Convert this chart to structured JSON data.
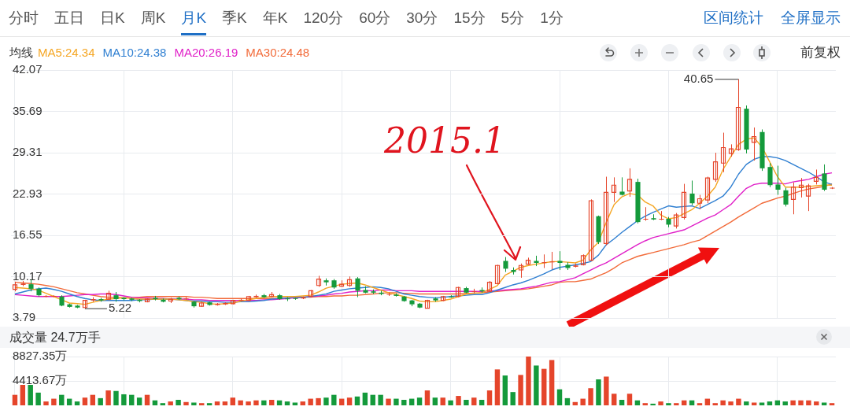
{
  "chart_data": [
    {
      "type": "other",
      "annotations": [
        "分时",
        "五日",
        "日K",
        "周K",
        "月K",
        "季K",
        "年K",
        "120分",
        "60分",
        "30分",
        "15分",
        "5分",
        "1分",
        "区间统计",
        "全屏显示",
        "前复权"
      ]
    },
    {
      "type": "candlestick",
      "legend_title": "均线",
      "legend": "top left",
      "grid": true,
      "tick_labels": "y",
      "categories": [
        null,
        null,
        null,
        null,
        null,
        null,
        null,
        null,
        null,
        null,
        null,
        null,
        null,
        null,
        null,
        null,
        null,
        null,
        null,
        null,
        null,
        null,
        null,
        null,
        null,
        null,
        null,
        null,
        null,
        null,
        null,
        null,
        null,
        null,
        null,
        null,
        null,
        null,
        null,
        null,
        null,
        null,
        null,
        null,
        null,
        null,
        null,
        null,
        null,
        null,
        null,
        null,
        null,
        null,
        null,
        null,
        null,
        null,
        null,
        null,
        null,
        null,
        null,
        null,
        null,
        null,
        null,
        null,
        null,
        null,
        null,
        null,
        null,
        null,
        null,
        null,
        null,
        null,
        null,
        null,
        null,
        null,
        null,
        null,
        null,
        null,
        null,
        null,
        null,
        null,
        null,
        null,
        null,
        null,
        null,
        null,
        null,
        null,
        null,
        null,
        null,
        null,
        null,
        null,
        null,
        null
      ],
      "ylim": [
        3.79,
        42.07
      ],
      "yticks": [
        3.79,
        10.17,
        16.55,
        22.93,
        29.31,
        35.69,
        42.07
      ],
      "ohlc": [
        [
          8.2,
          9.4,
          7.9,
          8.9
        ],
        [
          8.9,
          9.5,
          8.7,
          9.1
        ],
        [
          9.0,
          9.7,
          7.9,
          8.3
        ],
        [
          8.3,
          8.5,
          7.1,
          7.3
        ],
        [
          7.1,
          7.3,
          7.0,
          7.2
        ],
        [
          7.1,
          7.3,
          7.0,
          7.2
        ],
        [
          7.1,
          7.3,
          5.6,
          5.7
        ],
        [
          5.9,
          6.0,
          5.4,
          5.5
        ],
        [
          5.7,
          5.8,
          5.3,
          5.4
        ],
        [
          5.4,
          6.6,
          5.22,
          6.5
        ],
        [
          6.5,
          7.0,
          6.3,
          6.7
        ],
        [
          6.7,
          6.9,
          6.3,
          6.5
        ],
        [
          6.7,
          8.0,
          6.5,
          7.6
        ],
        [
          7.3,
          7.8,
          6.3,
          6.7
        ],
        [
          6.9,
          7.0,
          6.5,
          6.7
        ],
        [
          6.8,
          6.9,
          6.4,
          6.6
        ],
        [
          6.6,
          6.7,
          6.2,
          6.4
        ],
        [
          6.3,
          6.8,
          6.2,
          6.7
        ],
        [
          6.9,
          7.2,
          6.5,
          6.7
        ],
        [
          6.6,
          6.8,
          6.2,
          6.3
        ],
        [
          6.4,
          6.9,
          6.1,
          6.7
        ],
        [
          6.9,
          7.1,
          6.6,
          6.7
        ],
        [
          6.7,
          7.0,
          6.6,
          6.8
        ],
        [
          6.3,
          6.4,
          5.4,
          5.6
        ],
        [
          5.6,
          6.3,
          5.5,
          6.1
        ],
        [
          6.2,
          6.3,
          5.7,
          5.8
        ],
        [
          5.8,
          6.1,
          5.7,
          6.0
        ],
        [
          5.9,
          6.2,
          5.8,
          6.1
        ],
        [
          6.0,
          6.6,
          5.9,
          6.5
        ],
        [
          6.5,
          6.8,
          6.4,
          6.6
        ],
        [
          6.5,
          7.2,
          6.4,
          7.1
        ],
        [
          7.0,
          7.4,
          6.9,
          7.2
        ],
        [
          7.3,
          7.5,
          6.9,
          7.0
        ],
        [
          7.1,
          7.8,
          7.0,
          7.4
        ],
        [
          7.3,
          7.5,
          6.6,
          6.7
        ],
        [
          6.8,
          7.0,
          6.4,
          6.7
        ],
        [
          6.85,
          6.9,
          6.6,
          6.75
        ],
        [
          6.8,
          7.1,
          6.7,
          7.0
        ],
        [
          7.1,
          8.1,
          7.0,
          8.0
        ],
        [
          8.8,
          10.3,
          8.6,
          9.8
        ],
        [
          9.6,
          9.9,
          8.8,
          9.3
        ],
        [
          9.6,
          9.8,
          8.3,
          8.5
        ],
        [
          8.7,
          9.6,
          8.6,
          9.0
        ],
        [
          8.8,
          10.2,
          8.6,
          9.7
        ],
        [
          9.9,
          10.1,
          7.0,
          8.0
        ],
        [
          8.1,
          8.7,
          7.6,
          7.7
        ],
        [
          7.9,
          8.2,
          7.5,
          7.7
        ],
        [
          7.7,
          8.0,
          7.3,
          7.5
        ],
        [
          7.4,
          7.7,
          7.2,
          7.5
        ],
        [
          7.4,
          7.6,
          7.1,
          7.2
        ],
        [
          7.1,
          7.2,
          6.3,
          6.4
        ],
        [
          6.5,
          6.6,
          5.6,
          5.9
        ],
        [
          6.0,
          6.1,
          5.3,
          5.4
        ],
        [
          5.3,
          6.6,
          5.3,
          6.5
        ],
        [
          6.8,
          7.0,
          6.3,
          6.5
        ],
        [
          6.5,
          7.2,
          6.4,
          7.1
        ],
        [
          7.1,
          7.3,
          6.9,
          7.0
        ],
        [
          7.1,
          8.6,
          7.0,
          8.5
        ],
        [
          8.4,
          8.6,
          7.6,
          7.7
        ],
        [
          7.8,
          8.3,
          7.6,
          7.9
        ],
        [
          8.1,
          8.5,
          7.7,
          7.9
        ],
        [
          7.9,
          9.5,
          7.8,
          9.3
        ],
        [
          9.1,
          12.0,
          9.0,
          11.9
        ],
        [
          12.6,
          13.2,
          10.9,
          11.4
        ],
        [
          11.2,
          11.6,
          10.5,
          10.9
        ],
        [
          11.2,
          12.2,
          10.0,
          11.9
        ],
        [
          12.1,
          13.1,
          12.0,
          12.7
        ],
        [
          12.6,
          13.4,
          11.8,
          12.3
        ],
        [
          12.3,
          13.6,
          11.5,
          12.4
        ],
        [
          12.4,
          14.0,
          11.3,
          12.5
        ],
        [
          12.6,
          14.1,
          11.2,
          12.3
        ],
        [
          12.0,
          12.4,
          11.2,
          11.5
        ],
        [
          11.7,
          12.2,
          11.6,
          11.9
        ],
        [
          12.0,
          13.6,
          11.9,
          13.4
        ],
        [
          12.7,
          22.1,
          12.6,
          21.9
        ],
        [
          19.5,
          19.6,
          15.2,
          15.5
        ],
        [
          15.3,
          25.6,
          15.0,
          23.2
        ],
        [
          23.2,
          25.5,
          21.7,
          24.3
        ],
        [
          23.3,
          25.5,
          22.7,
          22.8
        ],
        [
          23.4,
          26.9,
          22.5,
          25.2
        ],
        [
          24.8,
          25.3,
          18.4,
          18.6
        ],
        [
          19.0,
          20.9,
          18.8,
          19.1
        ],
        [
          19.2,
          19.8,
          18.9,
          19.0
        ],
        [
          19.0,
          20.3,
          18.9,
          19.1
        ],
        [
          19.1,
          19.4,
          17.8,
          18.2
        ],
        [
          18.0,
          20.0,
          17.6,
          19.7
        ],
        [
          19.3,
          24.5,
          19.0,
          23.2
        ],
        [
          23.0,
          25.0,
          21.2,
          21.5
        ],
        [
          21.5,
          22.8,
          20.6,
          22.2
        ],
        [
          22.0,
          25.6,
          21.5,
          25.4
        ],
        [
          25.2,
          29.3,
          24.8,
          27.9
        ],
        [
          27.7,
          32.4,
          26.3,
          30.1
        ],
        [
          29.2,
          30.6,
          28.7,
          29.9
        ],
        [
          29.8,
          40.65,
          29.6,
          36.3
        ],
        [
          36.1,
          36.6,
          29.2,
          29.8
        ],
        [
          30.9,
          33.2,
          28.1,
          31.8
        ],
        [
          32.5,
          32.9,
          26.5,
          26.9
        ],
        [
          27.1,
          27.7,
          24.0,
          24.3
        ],
        [
          24.4,
          27.3,
          22.8,
          23.6
        ],
        [
          23.5,
          23.9,
          21.0,
          21.3
        ],
        [
          22.1,
          24.7,
          19.8,
          24.0
        ],
        [
          23.9,
          25.4,
          22.4,
          24.3
        ],
        [
          22.6,
          24.5,
          20.3,
          24.2
        ],
        [
          24.9,
          26.7,
          24.4,
          25.5
        ],
        [
          26.1,
          27.5,
          23.4,
          23.6
        ],
        [
          23.8,
          24.0,
          23.7,
          23.9
        ]
      ],
      "colors": [
        "#e5452b",
        "#e5452b",
        "#149a3b",
        "#149a3b",
        "#e5452b",
        "#e5452b",
        "#149a3b",
        "#149a3b",
        "#149a3b",
        "#e5452b",
        "#e5452b",
        "#149a3b",
        "#e5452b",
        "#149a3b",
        "#149a3b",
        "#149a3b",
        "#149a3b",
        "#e5452b",
        "#149a3b",
        "#149a3b",
        "#e5452b",
        "#149a3b",
        "#e5452b",
        "#149a3b",
        "#e5452b",
        "#149a3b",
        "#e5452b",
        "#e5452b",
        "#e5452b",
        "#e5452b",
        "#e5452b",
        "#e5452b",
        "#149a3b",
        "#e5452b",
        "#149a3b",
        "#149a3b",
        "#149a3b",
        "#e5452b",
        "#e5452b",
        "#e5452b",
        "#149a3b",
        "#149a3b",
        "#e5452b",
        "#e5452b",
        "#149a3b",
        "#149a3b",
        "#149a3b",
        "#149a3b",
        "#e5452b",
        "#149a3b",
        "#149a3b",
        "#149a3b",
        "#149a3b",
        "#e5452b",
        "#149a3b",
        "#e5452b",
        "#149a3b",
        "#e5452b",
        "#149a3b",
        "#e5452b",
        "#149a3b",
        "#e5452b",
        "#e5452b",
        "#149a3b",
        "#149a3b",
        "#e5452b",
        "#e5452b",
        "#149a3b",
        "#e5452b",
        "#e5452b",
        "#149a3b",
        "#149a3b",
        "#e5452b",
        "#e5452b",
        "#e5452b",
        "#149a3b",
        "#e5452b",
        "#e5452b",
        "#149a3b",
        "#e5452b",
        "#149a3b",
        "#e5452b",
        "#149a3b",
        "#e5452b",
        "#149a3b",
        "#e5452b",
        "#e5452b",
        "#149a3b",
        "#e5452b",
        "#e5452b",
        "#e5452b",
        "#e5452b",
        "#e5452b",
        "#e5452b",
        "#149a3b",
        "#e5452b",
        "#149a3b",
        "#149a3b",
        "#149a3b",
        "#149a3b",
        "#e5452b",
        "#e5452b",
        "#e5452b",
        "#e5452b",
        "#149a3b",
        "#e5452b"
      ],
      "series": [
        {
          "type": "line",
          "name": "MA5:24.34",
          "color": "#f5a623",
          "values": [
            8.5,
            8.4,
            8.3,
            8.1,
            7.6,
            7.1,
            6.6,
            6.1,
            6.0,
            5.9,
            6.2,
            6.5,
            6.7,
            6.8,
            6.9,
            6.8,
            6.7,
            6.7,
            6.7,
            6.7,
            6.7,
            6.6,
            6.5,
            6.3,
            6.2,
            6.0,
            5.9,
            6.0,
            6.1,
            6.4,
            6.6,
            6.8,
            7.0,
            7.1,
            7.1,
            7.1,
            7.1,
            7.2,
            7.3,
            7.8,
            8.4,
            8.7,
            9.0,
            9.1,
            9.2,
            8.9,
            8.5,
            8.1,
            7.7,
            7.4,
            7.1,
            6.8,
            6.4,
            6.3,
            6.3,
            6.5,
            6.7,
            7.1,
            7.5,
            7.6,
            7.7,
            8.2,
            8.8,
            10.4,
            11.0,
            11.6,
            11.9,
            12.1,
            12.3,
            12.5,
            12.5,
            12.4,
            12.3,
            12.7,
            14.3,
            15.5,
            18.6,
            21.3,
            22.5,
            23.0,
            22.8,
            21.7,
            21.1,
            19.7,
            19.1,
            19.3,
            19.9,
            20.5,
            21.5,
            22.6,
            24.0,
            26.7,
            28.7,
            30.6,
            31.4,
            31.6,
            30.2,
            27.9,
            25.6,
            24.0,
            24.0,
            24.0,
            24.1,
            24.2,
            24.3,
            24.3
          ]
        },
        {
          "type": "line",
          "name": "MA10:24.38",
          "color": "#2f7fd1",
          "values": [
            7.5,
            7.8,
            8.1,
            8.3,
            8.4,
            8.2,
            7.9,
            7.5,
            7.1,
            6.8,
            6.6,
            6.5,
            6.5,
            6.5,
            6.5,
            6.5,
            6.6,
            6.6,
            6.7,
            6.7,
            6.7,
            6.6,
            6.5,
            6.4,
            6.4,
            6.3,
            6.3,
            6.2,
            6.2,
            6.3,
            6.3,
            6.4,
            6.5,
            6.7,
            6.8,
            6.9,
            7.0,
            7.0,
            7.1,
            7.3,
            7.5,
            7.9,
            8.1,
            8.3,
            8.4,
            8.5,
            8.6,
            8.5,
            8.3,
            7.9,
            7.5,
            7.3,
            7.1,
            7.0,
            6.9,
            7.0,
            7.1,
            7.2,
            7.3,
            7.4,
            7.4,
            7.7,
            8.1,
            8.5,
            8.9,
            9.2,
            9.6,
            10.1,
            10.6,
            11.2,
            11.6,
            11.8,
            12.0,
            12.2,
            12.5,
            13.5,
            15.1,
            16.0,
            17.0,
            17.9,
            18.8,
            19.5,
            20.1,
            20.6,
            21.1,
            20.9,
            21.0,
            21.1,
            20.7,
            21.3,
            21.9,
            22.6,
            24.0,
            26.0,
            27.5,
            28.3,
            28.7,
            28.7,
            28.5,
            28.1,
            27.5,
            26.9,
            26.3,
            25.6,
            24.8,
            24.4
          ]
        },
        {
          "type": "line",
          "name": "MA20:26.19",
          "color": "#e020c8",
          "values": [
            7.4,
            7.3,
            7.2,
            7.1,
            7.1,
            7.1,
            7.1,
            7.2,
            7.3,
            7.4,
            7.4,
            7.5,
            7.5,
            7.4,
            7.2,
            7.0,
            6.9,
            6.9,
            6.8,
            6.8,
            6.7,
            6.7,
            6.7,
            6.6,
            6.6,
            6.5,
            6.5,
            6.5,
            6.5,
            6.5,
            6.5,
            6.5,
            6.6,
            6.6,
            6.7,
            6.8,
            6.9,
            7.0,
            7.1,
            7.2,
            7.3,
            7.5,
            7.6,
            7.8,
            7.9,
            8.0,
            8.0,
            8.1,
            8.1,
            8.0,
            8.0,
            8.0,
            7.9,
            7.9,
            7.9,
            7.9,
            7.9,
            7.9,
            7.9,
            7.9,
            7.9,
            8.0,
            8.0,
            8.1,
            8.2,
            8.3,
            8.5,
            8.7,
            9.0,
            9.3,
            9.4,
            9.7,
            10.0,
            10.6,
            11.2,
            11.8,
            12.3,
            13.0,
            13.7,
            14.4,
            15.1,
            15.7,
            16.2,
            16.5,
            16.8,
            17.1,
            17.4,
            18.0,
            18.6,
            19.2,
            19.7,
            20.5,
            21.3,
            22.6,
            23.8,
            24.4,
            24.6,
            24.6,
            24.6,
            24.5,
            24.8,
            25.0,
            25.2,
            25.6,
            26.0,
            26.2
          ]
        },
        {
          "type": "line",
          "name": "MA30:24.48",
          "color": "#f26b3a",
          "values": [
            9.3,
            9.2,
            9.1,
            9.0,
            8.8,
            8.6,
            8.3,
            8.0,
            7.7,
            7.5,
            7.3,
            7.1,
            7.0,
            7.0,
            6.9,
            7.0,
            7.0,
            7.1,
            7.1,
            7.1,
            7.1,
            7.1,
            7.1,
            7.0,
            7.0,
            6.9,
            6.8,
            6.8,
            6.8,
            6.8,
            6.8,
            6.8,
            6.8,
            6.8,
            6.8,
            6.9,
            6.9,
            7.0,
            7.0,
            7.1,
            7.1,
            7.2,
            7.2,
            7.3,
            7.3,
            7.4,
            7.5,
            7.6,
            7.7,
            7.7,
            7.6,
            7.6,
            7.5,
            7.5,
            7.5,
            7.5,
            7.5,
            7.5,
            7.6,
            7.6,
            7.7,
            7.8,
            7.9,
            8.0,
            8.1,
            8.2,
            8.3,
            8.5,
            8.7,
            8.9,
            9.3,
            9.4,
            9.4,
            9.6,
            9.8,
            10.3,
            10.8,
            11.5,
            12.3,
            12.8,
            13.3,
            13.6,
            13.9,
            14.2,
            14.5,
            14.8,
            15.1,
            15.5,
            15.8,
            16.5,
            17.2,
            17.9,
            18.6,
            19.4,
            20.1,
            20.8,
            21.5,
            21.9,
            22.3,
            22.6,
            23.0,
            23.4,
            23.7,
            23.9,
            24.1,
            24.5
          ]
        }
      ],
      "annotations": [
        "5.22",
        "40.65",
        "2015.1"
      ]
    },
    {
      "type": "bar",
      "title": "成交量 24.7万手",
      "grid": true,
      "tick_labels": "y",
      "categories": [
        null,
        null,
        null,
        null,
        null,
        null,
        null,
        null,
        null,
        null,
        null,
        null,
        null,
        null,
        null,
        null,
        null,
        null,
        null,
        null,
        null,
        null,
        null,
        null,
        null,
        null,
        null,
        null,
        null,
        null,
        null,
        null,
        null,
        null,
        null,
        null,
        null,
        null,
        null,
        null,
        null,
        null,
        null,
        null,
        null,
        null,
        null,
        null,
        null,
        null,
        null,
        null,
        null,
        null,
        null,
        null,
        null,
        null,
        null,
        null,
        null,
        null,
        null,
        null,
        null,
        null,
        null,
        null,
        null,
        null,
        null,
        null,
        null,
        null,
        null,
        null,
        null,
        null,
        null,
        null,
        null,
        null,
        null,
        null,
        null,
        null,
        null,
        null,
        null,
        null,
        null,
        null,
        null,
        null,
        null,
        null,
        null,
        null,
        null,
        null,
        null,
        null,
        null,
        null,
        null,
        null
      ],
      "ylim": [
        0,
        8827.35
      ],
      "yticks": [
        {
          "value": 4413.67,
          "label": "4413.67万"
        },
        {
          "value": 8827.35,
          "label": "8827.35万"
        }
      ],
      "values": [
        1900,
        3700,
        3700,
        2300,
        700,
        1200,
        1900,
        1200,
        700,
        1400,
        1900,
        1300,
        2700,
        2600,
        2000,
        1900,
        1400,
        1900,
        900,
        400,
        700,
        1000,
        600,
        500,
        400,
        400,
        700,
        700,
        1400,
        900,
        700,
        900,
        900,
        1000,
        900,
        700,
        500,
        700,
        1200,
        1300,
        1400,
        1900,
        1200,
        1400,
        1600,
        2300,
        1900,
        1900,
        1200,
        1200,
        1000,
        1200,
        1400,
        2700,
        1400,
        1400,
        900,
        1700,
        1000,
        1400,
        1000,
        2700,
        6500,
        5400,
        2400,
        5500,
        8827.35,
        7200,
        6600,
        8200,
        2900,
        1300,
        600,
        1200,
        3100,
        4700,
        5200,
        2100,
        1000,
        2100,
        900,
        400,
        300,
        700,
        400,
        400,
        900,
        900,
        400,
        1200,
        400,
        900,
        700,
        1200,
        700,
        500,
        500,
        700,
        900,
        700,
        900,
        900,
        900,
        700,
        500,
        400
      ],
      "colors": [
        "#e5452b",
        "#e5452b",
        "#149a3b",
        "#149a3b",
        "#e5452b",
        "#e5452b",
        "#149a3b",
        "#149a3b",
        "#149a3b",
        "#e5452b",
        "#e5452b",
        "#149a3b",
        "#e5452b",
        "#149a3b",
        "#149a3b",
        "#149a3b",
        "#149a3b",
        "#e5452b",
        "#149a3b",
        "#149a3b",
        "#e5452b",
        "#149a3b",
        "#e5452b",
        "#149a3b",
        "#e5452b",
        "#149a3b",
        "#e5452b",
        "#e5452b",
        "#e5452b",
        "#e5452b",
        "#e5452b",
        "#e5452b",
        "#149a3b",
        "#e5452b",
        "#149a3b",
        "#149a3b",
        "#149a3b",
        "#e5452b",
        "#e5452b",
        "#e5452b",
        "#149a3b",
        "#149a3b",
        "#e5452b",
        "#e5452b",
        "#149a3b",
        "#149a3b",
        "#149a3b",
        "#149a3b",
        "#e5452b",
        "#149a3b",
        "#149a3b",
        "#149a3b",
        "#149a3b",
        "#e5452b",
        "#149a3b",
        "#e5452b",
        "#149a3b",
        "#e5452b",
        "#149a3b",
        "#e5452b",
        "#149a3b",
        "#e5452b",
        "#e5452b",
        "#149a3b",
        "#149a3b",
        "#e5452b",
        "#e5452b",
        "#149a3b",
        "#e5452b",
        "#e5452b",
        "#149a3b",
        "#149a3b",
        "#e5452b",
        "#e5452b",
        "#e5452b",
        "#149a3b",
        "#e5452b",
        "#e5452b",
        "#149a3b",
        "#e5452b",
        "#149a3b",
        "#e5452b",
        "#149a3b",
        "#e5452b",
        "#149a3b",
        "#e5452b",
        "#e5452b",
        "#149a3b",
        "#e5452b",
        "#e5452b",
        "#e5452b",
        "#e5452b",
        "#e5452b",
        "#e5452b",
        "#149a3b",
        "#e5452b",
        "#149a3b",
        "#149a3b",
        "#149a3b",
        "#149a3b",
        "#e5452b",
        "#e5452b",
        "#e5452b",
        "#e5452b",
        "#149a3b",
        "#e5452b"
      ]
    }
  ]
}
